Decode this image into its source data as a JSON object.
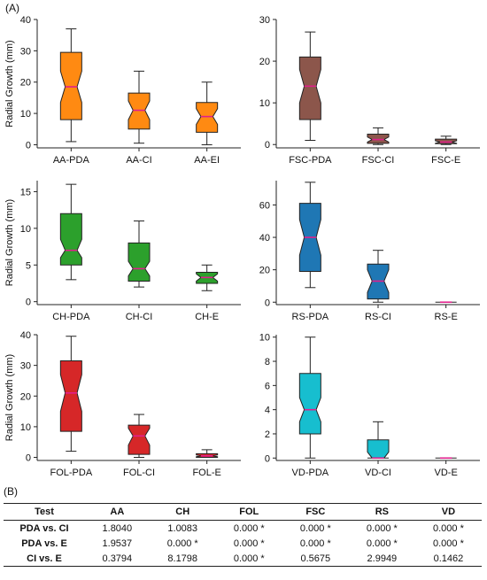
{
  "panel_a_label": "(A)",
  "panel_b_label": "(B)",
  "chart_data": [
    {
      "type": "box",
      "id": "AA",
      "ylabel": "Radial Growth (mm)",
      "ylim": [
        -1,
        40
      ],
      "yticks": [
        0,
        10,
        20,
        30,
        40
      ],
      "color": "#ff8a12",
      "categories": [
        "AA-PDA",
        "AA-CI",
        "AA-EI"
      ],
      "boxes": [
        {
          "min": 1,
          "q1": 8,
          "median": 18.5,
          "q3": 29.5,
          "max": 37,
          "notch_lo": 13.5,
          "notch_hi": 23.5
        },
        {
          "min": 0.5,
          "q1": 5,
          "median": 11,
          "q3": 16.5,
          "max": 23.5,
          "notch_lo": 8,
          "notch_hi": 14
        },
        {
          "min": 0,
          "q1": 4,
          "median": 9,
          "q3": 13.5,
          "max": 20,
          "notch_lo": 6.5,
          "notch_hi": 11.5
        }
      ]
    },
    {
      "type": "box",
      "id": "FSC",
      "ylabel": "",
      "ylim": [
        -0.8,
        30
      ],
      "yticks": [
        0,
        10,
        20,
        30
      ],
      "color": "#8c564b",
      "categories": [
        "FSC-PDA",
        "FSC-CI",
        "FSC-E"
      ],
      "boxes": [
        {
          "min": 1,
          "q1": 6,
          "median": 14,
          "q3": 21,
          "max": 27,
          "notch_lo": 10,
          "notch_hi": 18
        },
        {
          "min": 0,
          "q1": 0.3,
          "median": 1.2,
          "q3": 2.5,
          "max": 4,
          "notch_lo": 0.6,
          "notch_hi": 1.8
        },
        {
          "min": 0,
          "q1": 0.2,
          "median": 0.6,
          "q3": 1.3,
          "max": 2,
          "notch_lo": 0.3,
          "notch_hi": 0.9
        }
      ]
    },
    {
      "type": "box",
      "id": "CH",
      "ylabel": "Radial Growth (mm)",
      "ylim": [
        -0.4,
        16.5
      ],
      "yticks": [
        0,
        5,
        10,
        15
      ],
      "color": "#2ca02c",
      "categories": [
        "CH-PDA",
        "CH-CI",
        "CH-E"
      ],
      "boxes": [
        {
          "min": 3,
          "q1": 5,
          "median": 7,
          "q3": 12,
          "max": 16,
          "notch_lo": 6,
          "notch_hi": 8.5
        },
        {
          "min": 2,
          "q1": 2.8,
          "median": 4.5,
          "q3": 8,
          "max": 11,
          "notch_lo": 3.5,
          "notch_hi": 5.5
        },
        {
          "min": 1.5,
          "q1": 2.5,
          "median": 3.3,
          "q3": 4,
          "max": 5,
          "notch_lo": 2.8,
          "notch_hi": 3.8
        }
      ]
    },
    {
      "type": "box",
      "id": "RS",
      "ylabel": "",
      "ylim": [
        -1.5,
        75
      ],
      "yticks": [
        0,
        20,
        40,
        60
      ],
      "color": "#1f77b4",
      "categories": [
        "RS-PDA",
        "RS-CI",
        "RS-E"
      ],
      "boxes": [
        {
          "min": 9,
          "q1": 19,
          "median": 40,
          "q3": 61,
          "max": 74,
          "notch_lo": 29,
          "notch_hi": 51
        },
        {
          "min": 0,
          "q1": 2,
          "median": 13,
          "q3": 23.5,
          "max": 32,
          "notch_lo": 6,
          "notch_hi": 20
        },
        {
          "min": 0,
          "q1": 0,
          "median": 0,
          "q3": 0,
          "max": 0,
          "notch_lo": 0,
          "notch_hi": 0
        }
      ]
    },
    {
      "type": "box",
      "id": "FOL",
      "ylabel": "Radial Growth (mm)",
      "ylim": [
        -1,
        40
      ],
      "yticks": [
        0,
        10,
        20,
        30,
        40
      ],
      "color": "#d62728",
      "categories": [
        "FOL-PDA",
        "FOL-CI",
        "FOL-E"
      ],
      "boxes": [
        {
          "min": 2,
          "q1": 8.5,
          "median": 21,
          "q3": 31.5,
          "max": 39.5,
          "notch_lo": 15,
          "notch_hi": 27
        },
        {
          "min": 0,
          "q1": 1,
          "median": 7,
          "q3": 10.5,
          "max": 14,
          "notch_lo": 4,
          "notch_hi": 9.5
        },
        {
          "min": 0,
          "q1": 0,
          "median": 0.5,
          "q3": 1.2,
          "max": 2.5,
          "notch_lo": 0.2,
          "notch_hi": 0.8
        }
      ]
    },
    {
      "type": "box",
      "id": "VD",
      "ylabel": "",
      "ylim": [
        -0.2,
        10.2
      ],
      "yticks": [
        0,
        2,
        4,
        6,
        8,
        10
      ],
      "color": "#17becf",
      "categories": [
        "VD-PDA",
        "VD-CI",
        "VD-E"
      ],
      "boxes": [
        {
          "min": 0,
          "q1": 2,
          "median": 4,
          "q3": 7,
          "max": 10,
          "notch_lo": 3,
          "notch_hi": 5
        },
        {
          "min": 0,
          "q1": 0,
          "median": 0,
          "q3": 1.5,
          "max": 3,
          "notch_lo": 0,
          "notch_hi": 0.5
        },
        {
          "min": 0,
          "q1": 0,
          "median": 0,
          "q3": 0,
          "max": 0,
          "notch_lo": 0,
          "notch_hi": 0
        }
      ]
    }
  ],
  "table": {
    "headers": [
      "Test",
      "AA",
      "CH",
      "FOL",
      "FSC",
      "RS",
      "VD"
    ],
    "rows": [
      [
        "PDA vs. CI",
        "1.8040",
        "1.0083",
        "0.000 *",
        "0.000 *",
        "0.000 *",
        "0.000 *"
      ],
      [
        "PDA vs. E",
        "1.9537",
        "0.000 *",
        "0.000 *",
        "0.000 *",
        "0.000 *",
        "0.000 *"
      ],
      [
        "CI vs. E",
        "0.3794",
        "8.1798",
        "0.000 *",
        "0.5675",
        "2.9949",
        "0.1462"
      ]
    ]
  }
}
